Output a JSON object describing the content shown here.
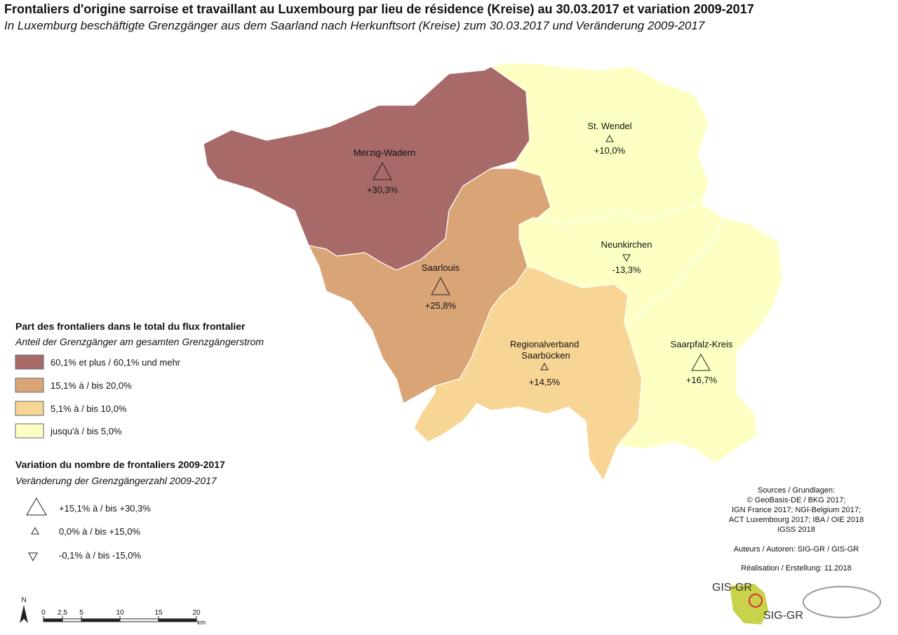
{
  "header": {
    "title": "Frontaliers d'origine sarroise et travaillant au Luxembourg par lieu de résidence (Kreise) au 30.03.2017 et variation 2009-2017",
    "subtitle": "In Luxemburg beschäftigte Grenzgänger aus dem Saarland nach Herkunftsort (Kreise) zum 30.03.2017 und Veränderung 2009-2017"
  },
  "regions": [
    {
      "name": "Merzig-Wadern",
      "change": "+30,3%"
    },
    {
      "name": "St. Wendel",
      "change": "+10,0%"
    },
    {
      "name": "Neunkirchen",
      "change": "-13,3%"
    },
    {
      "name": "Saarlouis",
      "change": "+25,8%"
    },
    {
      "name": "Regionalverband Saarbücken",
      "change": "+14,5%"
    },
    {
      "name": "Saarpfalz-Kreis",
      "change": "+16,7%"
    }
  ],
  "legend_share": {
    "title": "Part des frontaliers dans le total du flux frontalier",
    "subtitle": "Anteil der Grenzgänger am gesamten Grenzgängerstrom",
    "items": [
      "60,1% et plus / 60,1% und mehr",
      "15,1% à / bis 20,0%",
      "5,1% à / bis 10,0%",
      "jusqu'à / bis 5,0%"
    ]
  },
  "legend_change": {
    "title": "Variation du nombre de frontaliers 2009-2017",
    "subtitle": "Veränderung der Grenzgängerzahl 2009-2017",
    "items": [
      "+15,1% à / bis +30,3%",
      "0,0% à / bis +15,0%",
      "-0,1% à / bis -15,0%"
    ]
  },
  "sources": [
    "Sources / Grundlagen:",
    "© GeoBasis-DE / BKG 2017;",
    "IGN France 2017; NGI-Belgium 2017;",
    "ACT Luxembourg 2017; IBA / OIE 2018",
    "IGSS 2018"
  ],
  "authors": "Auteurs / Autoren: SIG-GR / GIS-GR",
  "realisation": "Réalisation / Erstellung: 11.2018",
  "scale": {
    "north": "N",
    "ticks": [
      "0",
      "2,5",
      "5",
      "10",
      "15",
      "20"
    ],
    "unit": "km"
  },
  "logos": [
    "GIS-GR",
    "SIG-GR"
  ]
}
